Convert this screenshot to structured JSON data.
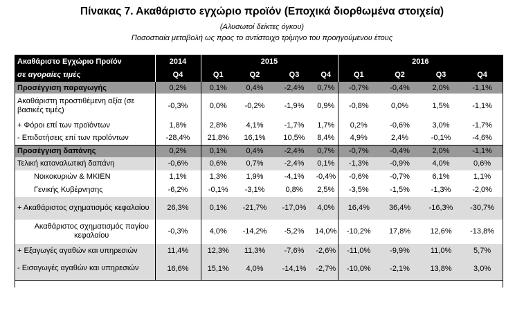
{
  "title": "Πίνακας 7. Ακαθάριστο εγχώριο προϊόν (Εποχικά διορθωμένα στοιχεία)",
  "subtitle1": "(Αλυσωτοί δείκτες όγκου)",
  "subtitle2": "Ποσοστιαία μεταβολή ως προς το αντίστοιχο τρίμηνο  του προηγούμενου έτους",
  "header": {
    "label1": "Ακαθάριστο Εγχώριο Προϊόν",
    "label2": "σε αγοραίες τιμές",
    "years": [
      "2014",
      "2015",
      "2016"
    ],
    "quarters": [
      "Q4",
      "Q1",
      "Q2",
      "Q3",
      "Q4",
      "Q1",
      "Q2",
      "Q3",
      "Q4"
    ]
  },
  "rows": [
    {
      "label": "Προσέγγιση παραγωγής",
      "values": [
        "0,2%",
        "0,1%",
        "0,4%",
        "-2,4%",
        "0,7%",
        "-0,7%",
        "-0,4%",
        "2,0%",
        "-1,1%"
      ]
    },
    {
      "label": "Ακαθάριστη προστιθέμενη αξία (σε βασικές τιμές)",
      "values": [
        "-0,3%",
        "0,0%",
        "-0,2%",
        "-1,9%",
        "0,9%",
        "-0,8%",
        "0,0%",
        "1,5%",
        "-1,1%"
      ]
    },
    {
      "label": "+  Φόροι επί των προϊόντων",
      "values": [
        "1,8%",
        "2,8%",
        "4,1%",
        "-1,7%",
        "1,7%",
        "0,2%",
        "-0,6%",
        "3,0%",
        "-1,7%"
      ]
    },
    {
      "label": "-   Επιδοτήσεις επί των προϊόντων",
      "values": [
        "-28,4%",
        "21,8%",
        "16,1%",
        "10,5%",
        "8,4%",
        "4,9%",
        "2,4%",
        "-0,1%",
        "-4,6%"
      ]
    },
    {
      "label": "Προσέγγιση δαπάνης",
      "values": [
        "0,2%",
        "0,1%",
        "0,4%",
        "-2,4%",
        "0,7%",
        "-0,7%",
        "-0,4%",
        "2,0%",
        "-1,1%"
      ]
    },
    {
      "label": "Τελική καταναλωτική δαπάνη",
      "values": [
        "-0,6%",
        "0,6%",
        "0,7%",
        "-2,4%",
        "0,1%",
        "-1,3%",
        "-0,9%",
        "4,0%",
        "0,6%"
      ]
    },
    {
      "label": "Νοικοκυριών & ΜΚΙΕΝ",
      "values": [
        "1,1%",
        "1,3%",
        "1,9%",
        "-4,1%",
        "-0,4%",
        "-0,6%",
        "-0,7%",
        "6,1%",
        "1,1%"
      ]
    },
    {
      "label": "Γενικής Κυβέρνησης",
      "values": [
        "-6,2%",
        "-0,1%",
        "-3,1%",
        "0,8%",
        "2,5%",
        "-3,5%",
        "-1,5%",
        "-1,3%",
        "-2,0%"
      ]
    },
    {
      "label": "+ Ακαθάριστος σχηματισμός κεφαλαίου",
      "values": [
        "26,3%",
        "0,1%",
        "-21,7%",
        "-17,0%",
        "4,0%",
        "16,4%",
        "36,4%",
        "-16,3%",
        "-30,7%"
      ]
    },
    {
      "label": "Ακαθάριστος σχηματισμός παγίου κεφαλαίου",
      "values": [
        "-0,3%",
        "4,0%",
        "-14,2%",
        "-5,2%",
        "14,0%",
        "-10,2%",
        "17,8%",
        "12,6%",
        "-13,8%"
      ]
    },
    {
      "label": "+ Εξαγωγές αγαθών και υπηρεσιών",
      "values": [
        "11,4%",
        "12,3%",
        "11,3%",
        "-7,6%",
        "-2,6%",
        "-11,0%",
        "-9,9%",
        "11,0%",
        "5,7%"
      ]
    },
    {
      "label": "-  Εισαγωγές αγαθών και υπηρεσιών",
      "values": [
        "16,6%",
        "15,1%",
        "4,0%",
        "-14,1%",
        "-2,7%",
        "-10,0%",
        "-2,1%",
        "13,8%",
        "3,0%"
      ]
    }
  ]
}
